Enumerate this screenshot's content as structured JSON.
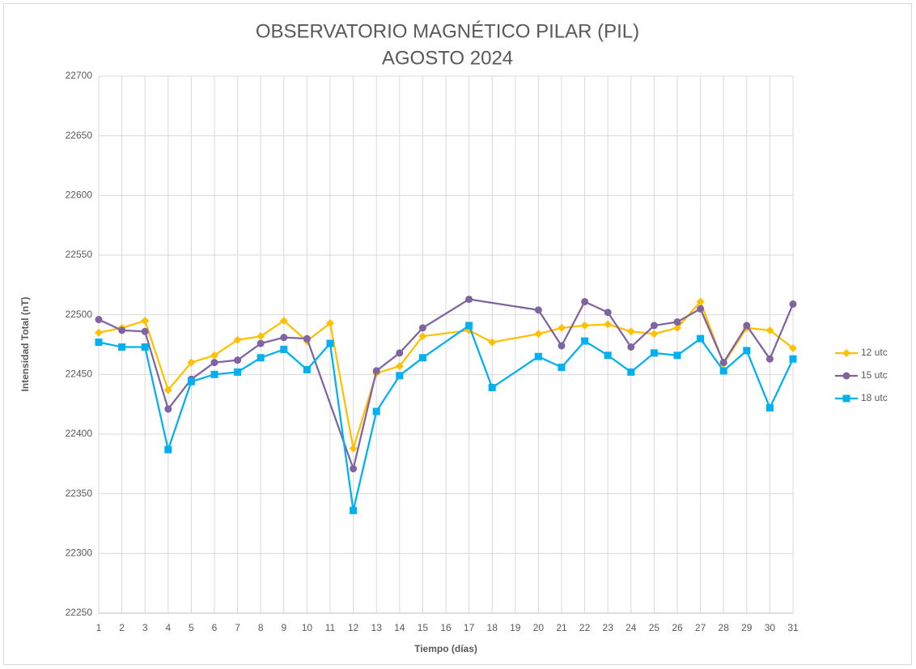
{
  "chart_data": {
    "type": "line",
    "title": "OBSERVATORIO MAGNÉTICO PILAR (PIL)",
    "subtitle": "AGOSTO 2024",
    "x_label": "Tiempo (días)",
    "y_label": "Intensidad Total (nT)",
    "xlim": [
      1,
      31
    ],
    "xticks": [
      1,
      2,
      3,
      4,
      5,
      6,
      7,
      8,
      9,
      10,
      11,
      12,
      13,
      14,
      15,
      16,
      17,
      18,
      19,
      20,
      21,
      22,
      23,
      24,
      25,
      26,
      27,
      28,
      29,
      30,
      31
    ],
    "ylim": [
      22250,
      22700
    ],
    "yticks": [
      22250,
      22300,
      22350,
      22400,
      22450,
      22500,
      22550,
      22600,
      22650,
      22700
    ],
    "grid": true,
    "legend": "right",
    "series": [
      {
        "name": "12 utc",
        "color": "#ffc000",
        "marker": "diamond",
        "x": [
          1,
          2,
          3,
          4,
          5,
          6,
          7,
          8,
          9,
          10,
          11,
          12,
          13,
          14,
          15,
          17,
          18,
          20,
          21,
          22,
          23,
          24,
          25,
          26,
          27,
          28,
          29,
          30,
          31
        ],
        "values": [
          22485,
          22489,
          22495,
          22437,
          22460,
          22466,
          22479,
          22482,
          22495,
          22478,
          22493,
          22388,
          22451,
          22457,
          22482,
          22487,
          22477,
          22484,
          22489,
          22491,
          22492,
          22486,
          22484,
          22489,
          22511,
          22459,
          22489,
          22487,
          22472
        ]
      },
      {
        "name": "15 utc",
        "color": "#8064a2",
        "marker": "circle",
        "x": [
          1,
          2,
          3,
          4,
          5,
          6,
          7,
          8,
          9,
          10,
          12,
          13,
          14,
          15,
          17,
          20,
          21,
          22,
          23,
          24,
          25,
          26,
          27,
          28,
          29,
          30,
          31
        ],
        "values": [
          22496,
          22487,
          22486,
          22421,
          22446,
          22460,
          22462,
          22476,
          22481,
          22480,
          22371,
          22453,
          22468,
          22489,
          22513,
          22504,
          22474,
          22511,
          22502,
          22473,
          22491,
          22494,
          22505,
          22460,
          22491,
          22463,
          22509
        ]
      },
      {
        "name": "18 utc",
        "color": "#00b0f0",
        "marker": "square",
        "x": [
          1,
          2,
          3,
          4,
          5,
          6,
          7,
          8,
          9,
          10,
          11,
          12,
          13,
          14,
          15,
          17,
          18,
          20,
          21,
          22,
          23,
          24,
          25,
          26,
          27,
          28,
          29,
          30,
          31
        ],
        "values": [
          22477,
          22473,
          22473,
          22387,
          22444,
          22450,
          22452,
          22464,
          22471,
          22454,
          22476,
          22336,
          22419,
          22449,
          22464,
          22491,
          22439,
          22465,
          22456,
          22478,
          22466,
          22452,
          22468,
          22466,
          22480,
          22453,
          22470,
          22422,
          22463
        ]
      }
    ]
  }
}
